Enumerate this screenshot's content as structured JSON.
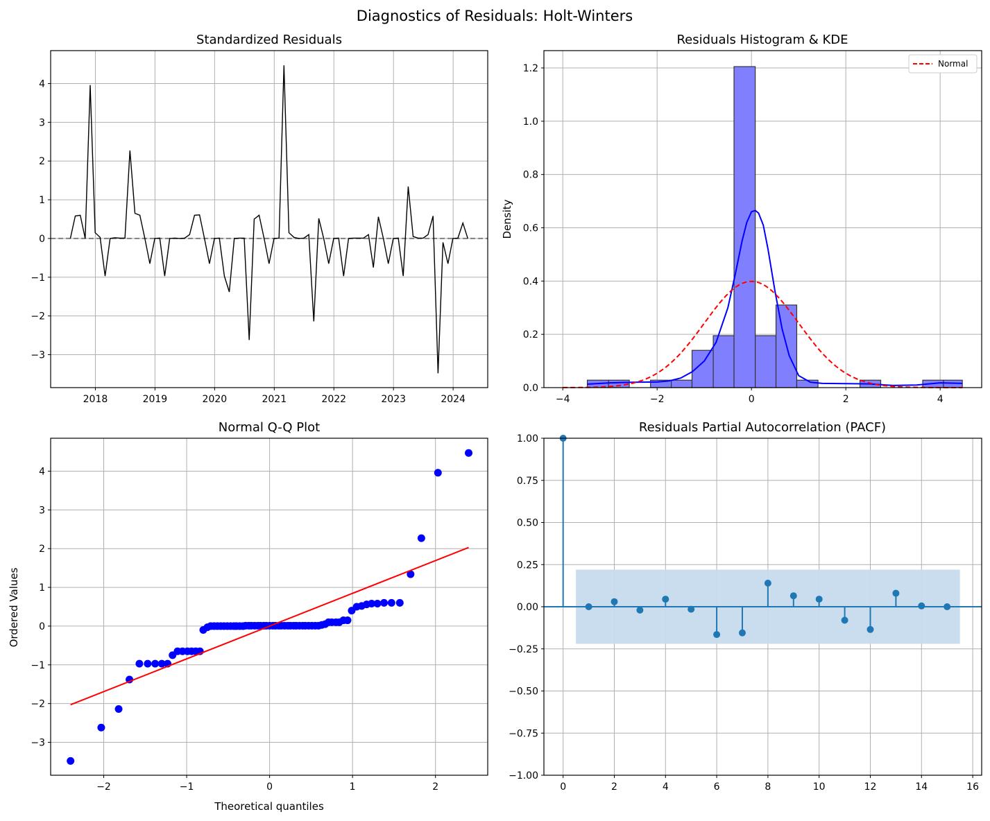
{
  "figure": {
    "title": "Diagnostics of Residuals: Holt-Winters"
  },
  "chart_data": [
    {
      "type": "line",
      "title": "Standardized Residuals",
      "xlabel": "",
      "ylabel": "",
      "x_tick_labels": [
        "2018",
        "2019",
        "2020",
        "2021",
        "2022",
        "2023",
        "2024"
      ],
      "y_ticks": [
        -3,
        -2,
        -1,
        0,
        1,
        2,
        3,
        4
      ],
      "y_tick_labels": [
        "−3",
        "−2",
        "−1",
        "0",
        "1",
        "2",
        "3",
        "4"
      ],
      "xlim": [
        2017.25,
        2024.58
      ],
      "ylim": [
        -3.85,
        4.85
      ],
      "grid": true,
      "reference_line": {
        "y": 0,
        "style": "dashed",
        "color": "#808080"
      },
      "series": [
        {
          "color": "#000000",
          "x_start": 2017.58,
          "x_step": 0.08333,
          "values": [
            0.0,
            0.58,
            0.6,
            0.0,
            3.96,
            0.15,
            0.03,
            -0.97,
            0.0,
            0.02,
            0.01,
            0.01,
            2.27,
            0.65,
            0.6,
            0.0,
            -0.65,
            0.0,
            0.01,
            -0.97,
            0.0,
            0.01,
            0.0,
            0.01,
            0.1,
            0.6,
            0.61,
            0.0,
            -0.65,
            0.0,
            0.01,
            -0.97,
            -1.38,
            0.0,
            0.01,
            0.01,
            -2.62,
            0.5,
            0.6,
            0.0,
            -0.65,
            0.0,
            0.01,
            4.47,
            0.15,
            0.03,
            0.0,
            0.01,
            0.1,
            -2.14,
            0.52,
            0.0,
            -0.65,
            0.0,
            0.01,
            -0.97,
            0.0,
            0.01,
            0.01,
            0.01,
            0.1,
            -0.75,
            0.56,
            0.0,
            -0.65,
            0.0,
            0.01,
            -0.97,
            1.34,
            0.05,
            0.01,
            0.01,
            0.1,
            0.58,
            -3.48,
            -0.1,
            -0.65,
            0.0,
            0.01,
            0.4,
            0.0
          ]
        }
      ]
    },
    {
      "type": "bar",
      "title": "Residuals Histogram & KDE",
      "xlabel": "",
      "ylabel": "Density",
      "x_ticks": [
        -4,
        -2,
        0,
        2,
        4
      ],
      "x_tick_labels": [
        "−4",
        "−2",
        "0",
        "2",
        "4"
      ],
      "y_ticks": [
        0.0,
        0.2,
        0.4,
        0.6,
        0.8,
        1.0,
        1.2
      ],
      "y_tick_labels": [
        "0.0",
        "0.2",
        "0.4",
        "0.6",
        "0.8",
        "1.0",
        "1.2"
      ],
      "xlim": [
        -4.4,
        4.88
      ],
      "ylim": [
        0,
        1.265
      ],
      "grid": true,
      "legend": {
        "placement": "top-right",
        "entries": [
          "Normal"
        ]
      },
      "histogram": {
        "color": "#8080ff",
        "edge_color": "#333333",
        "bin_edges": [
          -3.48,
          -3.03,
          -2.59,
          -2.14,
          -1.7,
          -1.26,
          -0.81,
          -0.37,
          0.08,
          0.52,
          0.96,
          1.41,
          1.85,
          2.3,
          2.74,
          3.18,
          3.63,
          4.07,
          4.47
        ],
        "density": [
          0.028,
          0.028,
          0.0,
          0.028,
          0.028,
          0.14,
          0.195,
          1.205,
          0.195,
          0.31,
          0.028,
          0.0,
          0.0,
          0.028,
          0.0,
          0.0,
          0.028,
          0.028
        ]
      },
      "series": [
        {
          "kind": "kde",
          "color": "#0000ff",
          "x": [
            -3.48,
            -3.0,
            -2.5,
            -2.0,
            -1.75,
            -1.5,
            -1.25,
            -1.0,
            -0.75,
            -0.5,
            -0.35,
            -0.2,
            -0.1,
            0.0,
            0.08,
            0.15,
            0.25,
            0.35,
            0.5,
            0.65,
            0.8,
            1.0,
            1.25,
            1.5,
            2.0,
            2.5,
            3.0,
            3.5,
            4.0,
            4.47
          ],
          "values": [
            0.013,
            0.018,
            0.02,
            0.021,
            0.025,
            0.036,
            0.06,
            0.1,
            0.17,
            0.3,
            0.42,
            0.55,
            0.62,
            0.66,
            0.665,
            0.655,
            0.61,
            0.52,
            0.36,
            0.22,
            0.12,
            0.045,
            0.02,
            0.016,
            0.015,
            0.014,
            0.008,
            0.01,
            0.018,
            0.016
          ]
        },
        {
          "kind": "normal_pdf",
          "name": "Normal",
          "color": "#ff0000",
          "style": "dashed",
          "mean": 0.0,
          "std": 1.0,
          "x_range": [
            -4,
            4.47
          ]
        }
      ]
    },
    {
      "type": "scatter",
      "title": "Normal Q-Q Plot",
      "xlabel": "Theoretical quantiles",
      "ylabel": "Ordered Values",
      "x_ticks": [
        -2,
        -1,
        0,
        1,
        2
      ],
      "x_tick_labels": [
        "−2",
        "−1",
        "0",
        "1",
        "2"
      ],
      "y_ticks": [
        -3,
        -2,
        -1,
        0,
        1,
        2,
        3,
        4
      ],
      "y_tick_labels": [
        "−3",
        "−2",
        "−1",
        "0",
        "1",
        "2",
        "3",
        "4"
      ],
      "xlim": [
        -2.64,
        2.63
      ],
      "ylim": [
        -3.85,
        4.85
      ],
      "grid": true,
      "points_color": "#0000ff",
      "x": [
        -2.4,
        -2.03,
        -1.82,
        -1.69,
        -1.57,
        -1.47,
        -1.38,
        -1.3,
        -1.23,
        -1.17,
        -1.11,
        -1.05,
        -0.99,
        -0.94,
        -0.89,
        -0.84,
        -0.8,
        -0.75,
        -0.71,
        -0.67,
        -0.63,
        -0.59,
        -0.55,
        -0.51,
        -0.47,
        -0.43,
        -0.4,
        -0.36,
        -0.32,
        -0.29,
        -0.25,
        -0.22,
        -0.18,
        -0.14,
        -0.11,
        -0.07,
        -0.04,
        0.0,
        0.04,
        0.07,
        0.11,
        0.14,
        0.18,
        0.22,
        0.25,
        0.29,
        0.32,
        0.36,
        0.4,
        0.43,
        0.47,
        0.51,
        0.55,
        0.59,
        0.63,
        0.67,
        0.71,
        0.75,
        0.8,
        0.84,
        0.89,
        0.94,
        0.99,
        1.05,
        1.11,
        1.17,
        1.23,
        1.3,
        1.38,
        1.47,
        1.57,
        1.69,
        1.82,
        2.03,
        2.4
      ],
      "values": [
        -3.48,
        -2.62,
        -2.14,
        -1.38,
        -0.97,
        -0.97,
        -0.97,
        -0.97,
        -0.97,
        -0.75,
        -0.65,
        -0.65,
        -0.65,
        -0.65,
        -0.65,
        -0.65,
        -0.1,
        -0.03,
        0.0,
        0.0,
        0.0,
        0.0,
        0.0,
        0.0,
        0.0,
        0.0,
        0.0,
        0.0,
        0.0,
        0.01,
        0.01,
        0.01,
        0.01,
        0.01,
        0.01,
        0.01,
        0.01,
        0.01,
        0.01,
        0.01,
        0.01,
        0.01,
        0.01,
        0.01,
        0.01,
        0.01,
        0.01,
        0.01,
        0.01,
        0.01,
        0.01,
        0.01,
        0.01,
        0.01,
        0.03,
        0.05,
        0.1,
        0.1,
        0.1,
        0.1,
        0.15,
        0.15,
        0.4,
        0.5,
        0.52,
        0.56,
        0.58,
        0.58,
        0.6,
        0.6,
        0.6,
        0.6,
        0.6,
        0.61,
        0.65
      ],
      "extra_points": {
        "x": [
          1.7,
          1.83,
          2.03,
          2.4
        ],
        "values": [
          1.34,
          2.27,
          3.96,
          4.47
        ]
      },
      "fit_line": {
        "color": "#ff0000",
        "x": [
          -2.4,
          2.4
        ],
        "values": [
          -2.03,
          2.03
        ]
      }
    },
    {
      "type": "scatter",
      "subtype": "stem",
      "title": "Residuals Partial Autocorrelation (PACF)",
      "xlabel": "",
      "ylabel": "",
      "x_ticks": [
        0,
        2,
        4,
        6,
        8,
        10,
        12,
        14,
        16
      ],
      "x_tick_labels": [
        "0",
        "2",
        "4",
        "6",
        "8",
        "10",
        "12",
        "14",
        "16"
      ],
      "y_ticks": [
        -1.0,
        -0.75,
        -0.5,
        -0.25,
        0.0,
        0.25,
        0.5,
        0.75,
        1.0
      ],
      "y_tick_labels": [
        "−1.00",
        "−0.75",
        "−0.50",
        "−0.25",
        "0.00",
        "0.25",
        "0.50",
        "0.75",
        "1.00"
      ],
      "xlim": [
        -0.75,
        16.35
      ],
      "ylim": [
        -1.0,
        1.0
      ],
      "grid": true,
      "color": "#1f77b4",
      "confidence_band": {
        "lower": -0.22,
        "upper": 0.22,
        "x_range": [
          0.5,
          15.5
        ],
        "color": "#c6dbed"
      },
      "lags": [
        0,
        1,
        2,
        3,
        4,
        5,
        6,
        7,
        8,
        9,
        10,
        11,
        12,
        13,
        14,
        15
      ],
      "values": [
        1.0,
        0.0,
        0.03,
        -0.02,
        0.045,
        -0.015,
        -0.165,
        -0.155,
        0.14,
        0.065,
        0.045,
        -0.08,
        -0.135,
        0.08,
        0.005,
        0.0
      ]
    }
  ]
}
